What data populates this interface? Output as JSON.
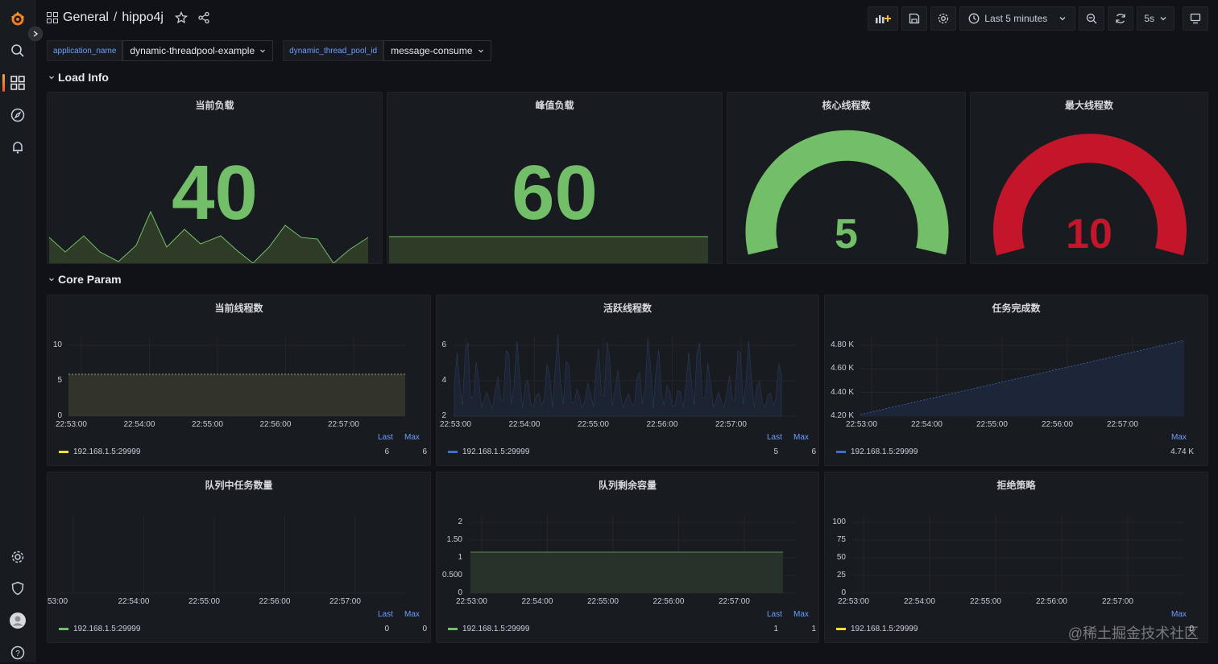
{
  "header": {
    "folder": "General",
    "separator": "/",
    "title": "hippo4j"
  },
  "toolbar": {
    "time_range": "Last 5 minutes",
    "refresh_interval": "5s"
  },
  "variables": [
    {
      "label": "application_name",
      "value": "dynamic-threadpool-example"
    },
    {
      "label": "dynamic_thread_pool_id",
      "value": "message-consume"
    }
  ],
  "rows": {
    "load": "Load Info",
    "core": "Core Param"
  },
  "stats": {
    "current_load": {
      "title": "当前负载",
      "value": "40"
    },
    "peak_load": {
      "title": "峰值负载",
      "value": "60"
    },
    "core_threads": {
      "title": "核心线程数",
      "value": "5",
      "level": 1.0,
      "color": "#73bf69"
    },
    "max_threads": {
      "title": "最大线程数",
      "value": "10",
      "level": 1.0,
      "color": "#c4162a"
    }
  },
  "series_name": "192.168.1.5:29999",
  "legend_headers": {
    "last": "Last",
    "max": "Max"
  },
  "time_ticks": [
    "22:53:00",
    "22:54:00",
    "22:55:00",
    "22:56:00",
    "22:57:00"
  ],
  "graphs": {
    "current_threads": {
      "title": "当前线程数",
      "y_ticks": [
        "10",
        "5",
        "0"
      ],
      "last": "6",
      "max": "6",
      "first_tick": "22:53:00",
      "color": "#fade2a"
    },
    "active_threads": {
      "title": "活跃线程数",
      "y_ticks": [
        "6",
        "4",
        "2"
      ],
      "last": "5",
      "max": "6",
      "first_tick": "22:53:00",
      "color": "#3274d9"
    },
    "completed_tasks": {
      "title": "任务完成数",
      "y_ticks": [
        "4.80 K",
        "4.60 K",
        "4.40 K",
        "4.20 K"
      ],
      "max": "4.74 K",
      "first_tick": "22:53:00",
      "color": "#3274d9"
    },
    "queue_size": {
      "title": "队列中任务数量",
      "y_ticks": [],
      "last": "0",
      "max": "0",
      "first_tick": "53:00",
      "color": "#73bf69"
    },
    "queue_remaining": {
      "title": "队列剩余容量",
      "y_ticks": [
        "2",
        "1.50",
        "1",
        "0.500",
        "0"
      ],
      "last": "1",
      "max": "1",
      "first_tick": "22:53:00",
      "color": "#73bf69"
    },
    "reject_policy": {
      "title": "拒绝策略",
      "y_ticks": [
        "100",
        "75",
        "50",
        "25",
        "0"
      ],
      "max": "0",
      "first_tick": "22:53:00",
      "color": "#fade2a"
    }
  },
  "watermark": "@稀土掘金技术社区"
}
